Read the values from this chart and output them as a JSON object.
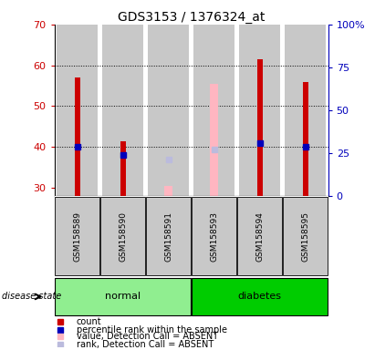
{
  "title": "GDS3153 / 1376324_at",
  "samples": [
    "GSM158589",
    "GSM158590",
    "GSM158591",
    "GSM158593",
    "GSM158594",
    "GSM158595"
  ],
  "ylim_left": [
    28,
    70
  ],
  "ylim_right": [
    0,
    100
  ],
  "yticks_left": [
    30,
    40,
    50,
    60,
    70
  ],
  "yticks_right": [
    0,
    25,
    50,
    75,
    100
  ],
  "ytick_labels_right": [
    "0",
    "25",
    "50",
    "75",
    "100%"
  ],
  "bar_bottom": 28,
  "red_bars": {
    "GSM158589": 57,
    "GSM158590": 41.5,
    "GSM158591": null,
    "GSM158593": null,
    "GSM158594": 61.5,
    "GSM158595": 56
  },
  "pink_bars": {
    "GSM158589": null,
    "GSM158590": null,
    "GSM158591": 30.5,
    "GSM158593": 55.5,
    "GSM158594": null,
    "GSM158595": null
  },
  "blue_markers": {
    "GSM158589": 40,
    "GSM158590": 38,
    "GSM158591": null,
    "GSM158593": null,
    "GSM158594": 41,
    "GSM158595": 40
  },
  "lavender_markers": {
    "GSM158589": null,
    "GSM158590": null,
    "GSM158591": 37,
    "GSM158593": 39.5,
    "GSM158594": null,
    "GSM158595": null
  },
  "group_configs": [
    {
      "name": "normal",
      "start": 0,
      "end": 2,
      "color": "#90EE90"
    },
    {
      "name": "diabetes",
      "start": 3,
      "end": 5,
      "color": "#00CC00"
    }
  ],
  "colors": {
    "red": "#CC0000",
    "pink": "#FFB6C1",
    "blue": "#0000BB",
    "lavender": "#BBBBDD",
    "left_axis": "#CC0000",
    "right_axis": "#0000BB",
    "grid_bg": "#C8C8C8"
  },
  "legend_items": [
    {
      "label": "count",
      "color": "#CC0000"
    },
    {
      "label": "percentile rank within the sample",
      "color": "#0000BB"
    },
    {
      "label": "value, Detection Call = ABSENT",
      "color": "#FFB6C1"
    },
    {
      "label": "rank, Detection Call = ABSENT",
      "color": "#BBBBDD"
    }
  ]
}
